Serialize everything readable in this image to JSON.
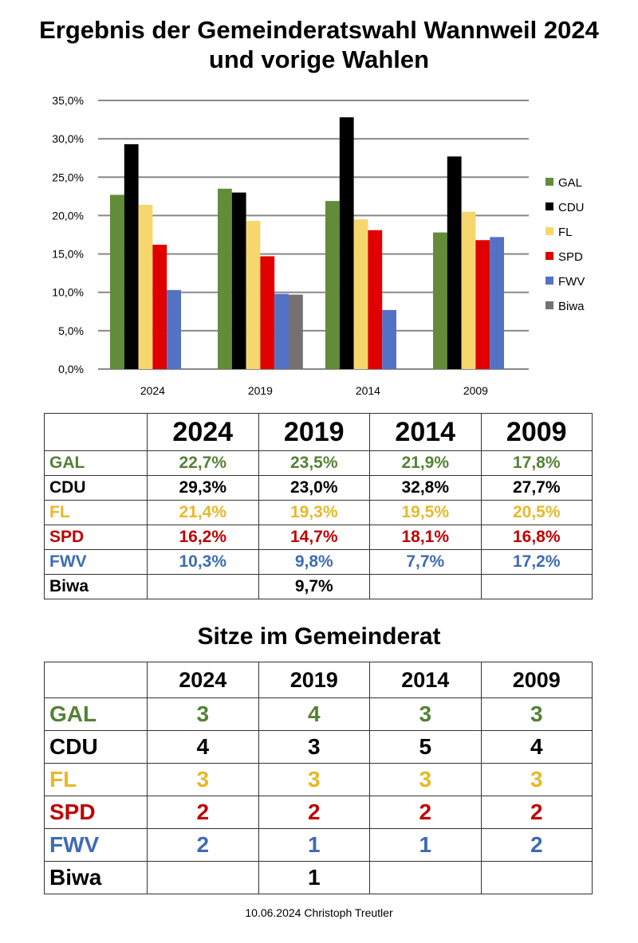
{
  "title_line1": "Ergebnis der Gemeinderatswahl Wannweil 2024",
  "title_line2": "und vorige Wahlen",
  "colors": {
    "GAL": "#638c3a",
    "CDU": "#000000",
    "FL": "#f5d76e",
    "SPD": "#e00000",
    "FWV": "#5472c4",
    "Biwa": "#767171"
  },
  "text_colors": {
    "GAL": "#548235",
    "CDU": "#000000",
    "FL": "#e8b828",
    "SPD": "#c00000",
    "FWV": "#3e6bb5",
    "Biwa": "#000000"
  },
  "chart_data": {
    "type": "bar",
    "categories": [
      "2024",
      "2019",
      "2014",
      "2009"
    ],
    "ylim": [
      0,
      35
    ],
    "yticks": [
      "0,0%",
      "5,0%",
      "10,0%",
      "15,0%",
      "20,0%",
      "25,0%",
      "30,0%",
      "35,0%"
    ],
    "grid": true,
    "legend": "right",
    "series": [
      {
        "name": "GAL",
        "values": [
          22.7,
          23.5,
          21.9,
          17.8
        ]
      },
      {
        "name": "CDU",
        "values": [
          29.3,
          23.0,
          32.8,
          27.7
        ]
      },
      {
        "name": "FL",
        "values": [
          21.4,
          19.3,
          19.5,
          20.5
        ]
      },
      {
        "name": "SPD",
        "values": [
          16.2,
          14.7,
          18.1,
          16.8
        ]
      },
      {
        "name": "FWV",
        "values": [
          10.3,
          9.8,
          7.7,
          17.2
        ]
      },
      {
        "name": "Biwa",
        "values": [
          null,
          9.7,
          null,
          null
        ]
      }
    ]
  },
  "results_table": {
    "headers": [
      "",
      "2024",
      "2019",
      "2014",
      "2009"
    ],
    "rows": [
      {
        "party": "GAL",
        "cells": [
          "22,7%",
          "23,5%",
          "21,9%",
          "17,8%"
        ]
      },
      {
        "party": "CDU",
        "cells": [
          "29,3%",
          "23,0%",
          "32,8%",
          "27,7%"
        ]
      },
      {
        "party": "FL",
        "cells": [
          "21,4%",
          "19,3%",
          "19,5%",
          "20,5%"
        ]
      },
      {
        "party": "SPD",
        "cells": [
          "16,2%",
          "14,7%",
          "18,1%",
          "16,8%"
        ]
      },
      {
        "party": "FWV",
        "cells": [
          "10,3%",
          "9,8%",
          "7,7%",
          "17,2%"
        ]
      },
      {
        "party": "Biwa",
        "cells": [
          "",
          "9,7%",
          "",
          ""
        ]
      }
    ]
  },
  "seats_title": "Sitze im Gemeinderat",
  "seats_table": {
    "headers": [
      "",
      "2024",
      "2019",
      "2014",
      "2009"
    ],
    "rows": [
      {
        "party": "GAL",
        "cells": [
          "3",
          "4",
          "3",
          "3"
        ]
      },
      {
        "party": "CDU",
        "cells": [
          "4",
          "3",
          "5",
          "4"
        ]
      },
      {
        "party": "FL",
        "cells": [
          "3",
          "3",
          "3",
          "3"
        ]
      },
      {
        "party": "SPD",
        "cells": [
          "2",
          "2",
          "2",
          "2"
        ]
      },
      {
        "party": "FWV",
        "cells": [
          "2",
          "1",
          "1",
          "2"
        ]
      },
      {
        "party": "Biwa",
        "cells": [
          "",
          "1",
          "",
          ""
        ]
      }
    ]
  },
  "footer": "10.06.2024 Christoph Treutler"
}
